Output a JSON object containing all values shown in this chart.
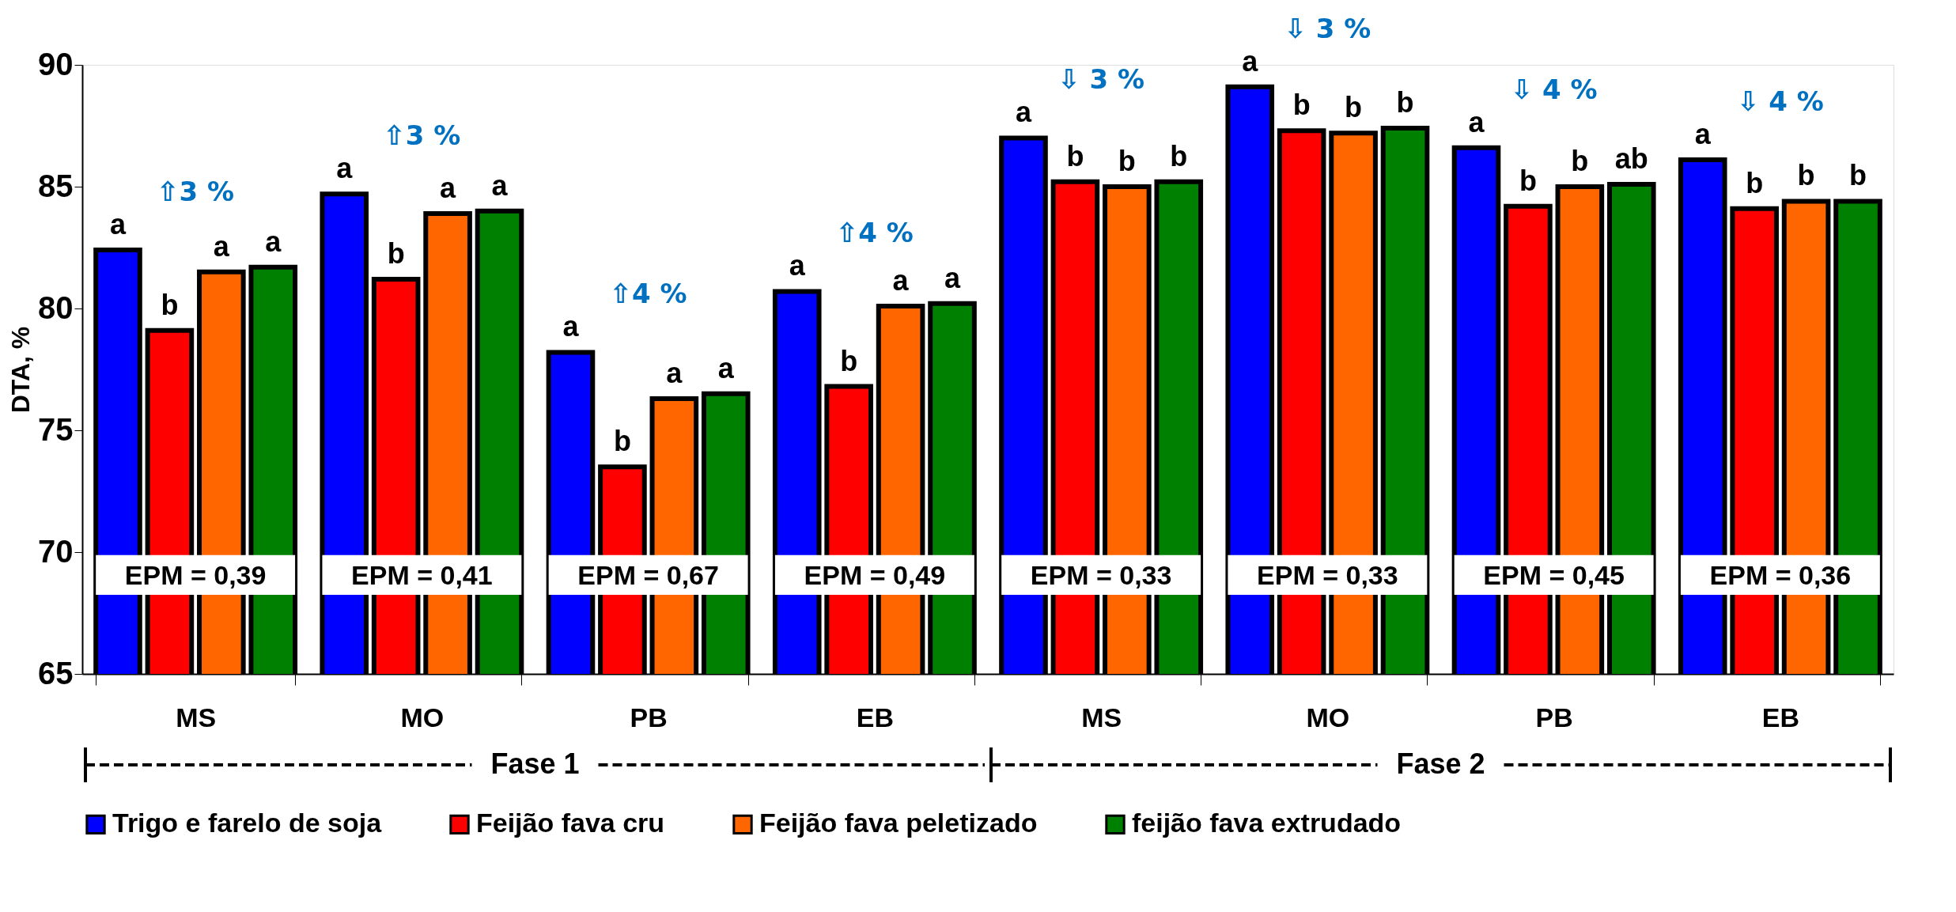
{
  "chart_data": {
    "type": "bar",
    "ylabel": "DTA, %",
    "categories": [
      "MS",
      "MO",
      "PB",
      "EB",
      "MS",
      "MO",
      "PB",
      "EB"
    ],
    "series": [
      {
        "name": "Trigo e farelo de soja",
        "color": "#0000ff",
        "values": [
          82.4,
          84.7,
          78.2,
          80.7,
          87.0,
          89.1,
          86.6,
          86.1
        ],
        "value_labels": [
          "a",
          "a",
          "a",
          "a",
          "a",
          "a",
          "a",
          "a"
        ]
      },
      {
        "name": "Feijão fava cru",
        "color": "#ff0000",
        "values": [
          79.1,
          81.2,
          73.5,
          76.8,
          85.2,
          87.3,
          84.2,
          84.1
        ],
        "value_labels": [
          "b",
          "b",
          "b",
          "b",
          "b",
          "b",
          "b",
          "b"
        ]
      },
      {
        "name": "Feijão fava peletizado",
        "color": "#ff6600",
        "values": [
          81.5,
          83.9,
          76.3,
          80.1,
          85.0,
          87.2,
          85.0,
          84.4
        ],
        "value_labels": [
          "a",
          "a",
          "a",
          "a",
          "b",
          "b",
          "b",
          "b"
        ]
      },
      {
        "name": "feijão fava extrudado",
        "color": "#008000",
        "values": [
          81.7,
          84.0,
          76.5,
          80.2,
          85.2,
          87.4,
          85.1,
          84.4
        ],
        "value_labels": [
          "a",
          "a",
          "a",
          "a",
          "b",
          "b",
          "ab",
          "b"
        ]
      }
    ],
    "ylim": [
      65,
      90
    ],
    "yticks": [
      65,
      70,
      75,
      80,
      85,
      90
    ],
    "grid": false,
    "legend": "bottom",
    "annotations": [
      "⇧3 %",
      "⇧3 %",
      "⇧4 %",
      "⇧4 %",
      "⇩ 3 %",
      "⇩ 3 %",
      "⇩ 4 %",
      "⇩ 4 %",
      "EPM = 0,39",
      "EPM = 0,41",
      "EPM = 0,67",
      "EPM = 0,49",
      "EPM = 0,33",
      "EPM = 0,33",
      "EPM = 0,45",
      "EPM = 0,36",
      "Fase 1",
      "Fase 2"
    ]
  }
}
